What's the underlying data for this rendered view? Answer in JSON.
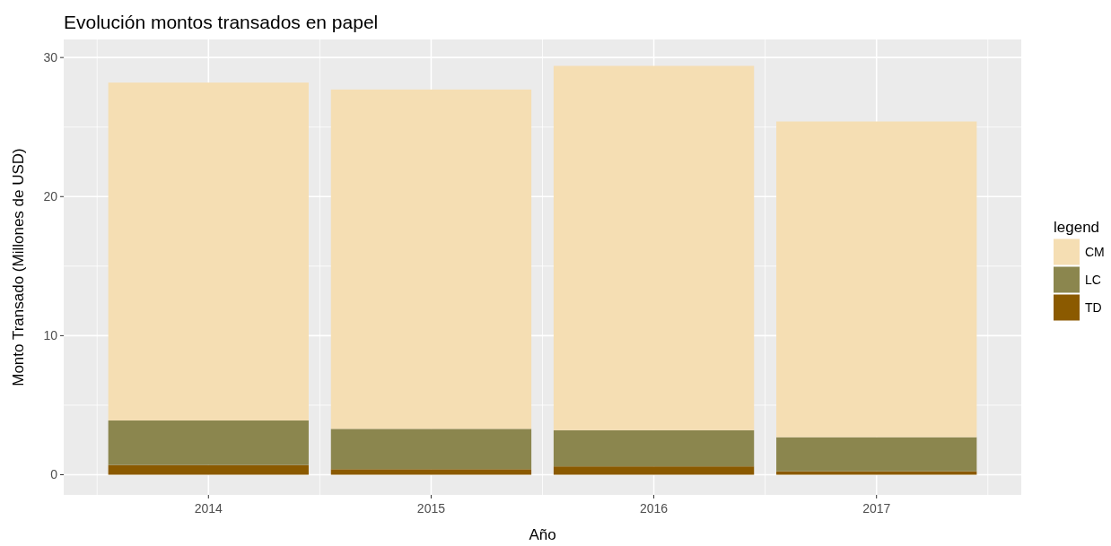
{
  "chart_data": {
    "type": "bar",
    "title": "Evolución montos transados en papel",
    "xlabel": "Año",
    "ylabel": "Monto Transado (Millones de USD)",
    "legend_title": "legend",
    "x": [
      2014,
      2015,
      2016,
      2017
    ],
    "xlim": [
      2013.35,
      2017.65
    ],
    "xticks": [
      2014,
      2015,
      2016,
      2017
    ],
    "ylim": [
      -1.45,
      31.3
    ],
    "yticks": [
      0,
      10,
      20,
      30
    ],
    "stacked": true,
    "grid": true,
    "legend": "right",
    "series": [
      {
        "name": "TD",
        "color": "#8b5a00",
        "values": [
          0.7,
          0.4,
          0.6,
          0.25
        ]
      },
      {
        "name": "LC",
        "color": "#8b864e",
        "values": [
          3.2,
          2.9,
          2.6,
          2.45
        ]
      },
      {
        "name": "CM",
        "color": "#f5deb3",
        "values": [
          24.3,
          24.4,
          26.2,
          22.7
        ]
      }
    ]
  }
}
